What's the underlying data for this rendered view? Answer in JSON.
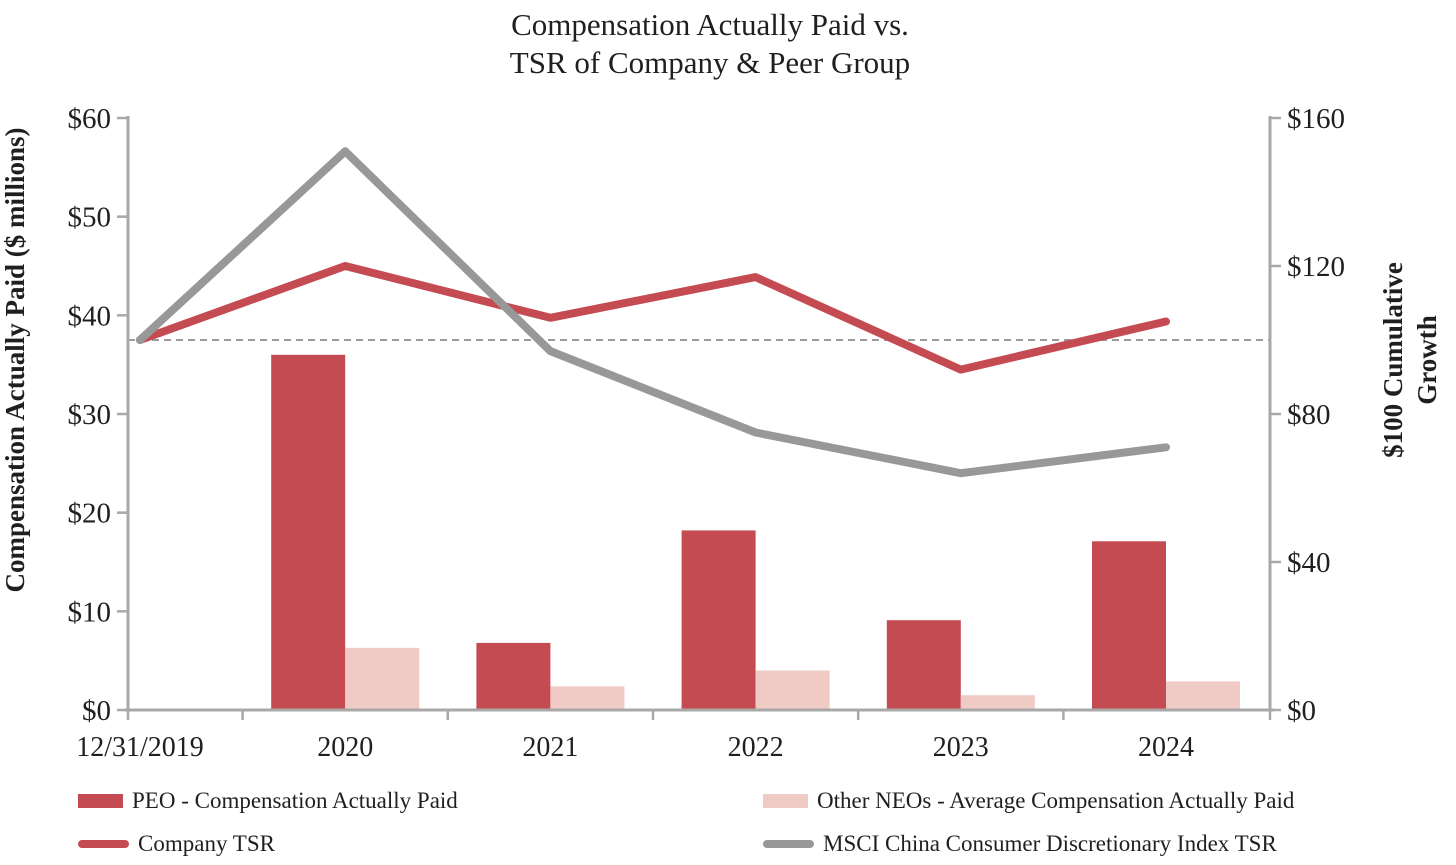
{
  "chart_data": {
    "type": "bar+line combo",
    "title_line1": "Compensation Actually Paid vs.",
    "title_line2": "TSR of Company & Peer Group",
    "categories": [
      "12/31/2019",
      "2020",
      "2021",
      "2022",
      "2023",
      "2024"
    ],
    "left_axis": {
      "label": "Compensation Actually Paid ($ millions)",
      "ticks": [
        "$60",
        "$50",
        "$40",
        "$30",
        "$20",
        "$10",
        "$0"
      ],
      "min": 0,
      "max": 60
    },
    "right_axis": {
      "label_line1": "$100 Cumulative",
      "label_line2": "Growth",
      "ticks": [
        "$160",
        "$120",
        "$80",
        "$40",
        "$0"
      ],
      "min": 0,
      "max": 160
    },
    "bar_series": [
      {
        "name": "PEO - Compensation Actually Paid",
        "axis": "left",
        "color": "#C54B52",
        "values": [
          null,
          36.0,
          6.8,
          18.2,
          9.1,
          17.1
        ]
      },
      {
        "name": "Other NEOs - Average Compensation Actually Paid",
        "axis": "left",
        "color": "#F0CBC6",
        "values": [
          null,
          6.3,
          2.4,
          4.0,
          1.5,
          2.9
        ]
      }
    ],
    "line_series": [
      {
        "name": "Company TSR",
        "axis": "right",
        "color": "#C54B52",
        "values": [
          100,
          120,
          106,
          117,
          92,
          105
        ]
      },
      {
        "name": "MSCI China Consumer Discretionary Index TSR",
        "axis": "right",
        "color": "#989898",
        "values": [
          100,
          151,
          97,
          75,
          64,
          71
        ]
      }
    ],
    "reference_line": {
      "axis": "right",
      "value": 100,
      "style": "dashed",
      "color": "#9B9B9B"
    },
    "legend": [
      {
        "label": "PEO - Compensation Actually Paid",
        "swatch": "rect",
        "color": "#C54B52"
      },
      {
        "label": "Other NEOs - Average Compensation Actually Paid",
        "swatch": "rect",
        "color": "#F0CBC6"
      },
      {
        "label": "Company TSR",
        "swatch": "line",
        "color": "#C54B52"
      },
      {
        "label": "MSCI China Consumer Discretionary Index TSR",
        "swatch": "line",
        "color": "#989898"
      }
    ],
    "axis_color": "#A8A8A8",
    "grid": "off",
    "legend_position": "bottom"
  }
}
